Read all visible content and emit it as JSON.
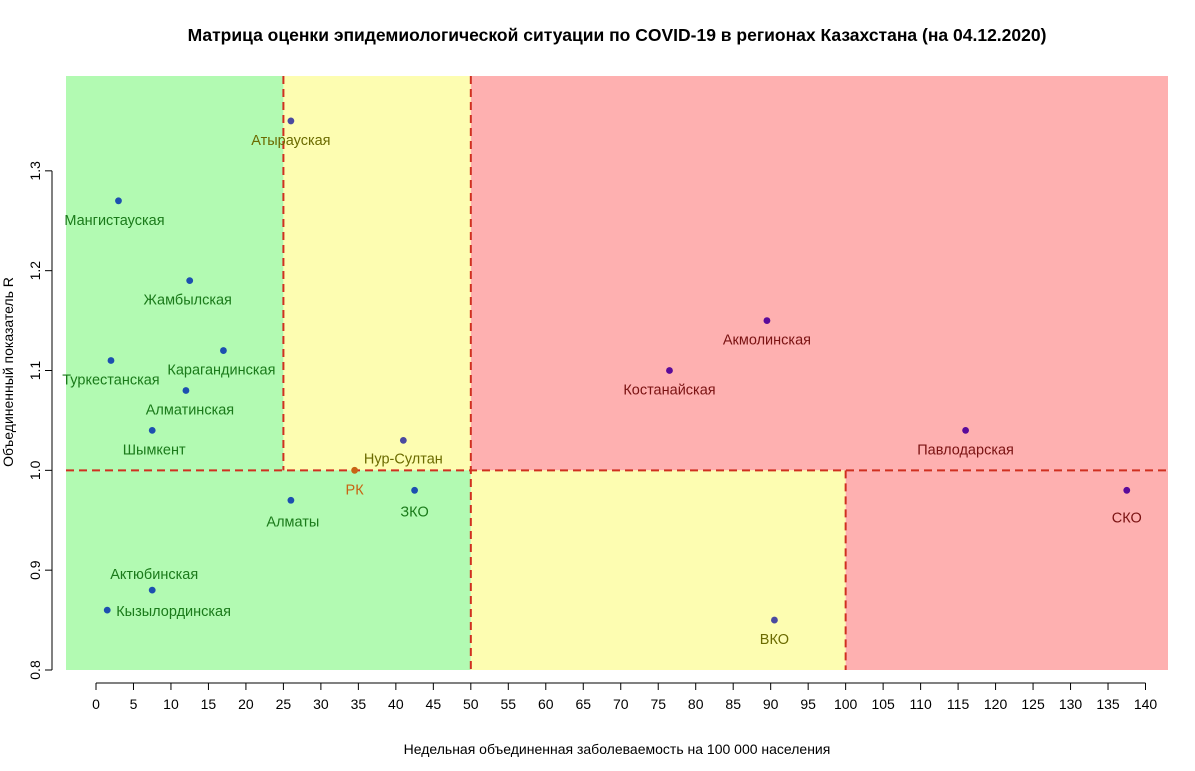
{
  "chart_data": {
    "type": "scatter",
    "title": "Матрица оценки эпидемиологической ситуации по COVID-19 в регионах Казахстана (на 04.12.2020)",
    "xlabel": "Недельная объединенная заболеваемость на 100 000 населения",
    "ylabel": "Объединенный показатель R",
    "xlim": [
      -4,
      143
    ],
    "ylim": [
      0.8,
      1.395
    ],
    "x_ticks": [
      0,
      5,
      10,
      15,
      20,
      25,
      30,
      35,
      40,
      45,
      50,
      55,
      60,
      65,
      70,
      75,
      80,
      85,
      90,
      95,
      100,
      105,
      110,
      115,
      120,
      125,
      130,
      135,
      140
    ],
    "y_ticks": [
      0.8,
      0.9,
      1.0,
      1.1,
      1.2,
      1.3
    ],
    "y_tick_labels": [
      "0.8",
      "0.9",
      "1.0",
      "1.1",
      "1.2",
      "1.3"
    ],
    "zones": [
      {
        "x": [
          -4,
          25
        ],
        "y": [
          1.0,
          1.395
        ],
        "color": "#b2fab2"
      },
      {
        "x": [
          25,
          50
        ],
        "y": [
          1.0,
          1.395
        ],
        "color": "#fdfdb1"
      },
      {
        "x": [
          50,
          143
        ],
        "y": [
          1.0,
          1.395
        ],
        "color": "#feb0b0"
      },
      {
        "x": [
          -4,
          50
        ],
        "y": [
          0.8,
          1.0
        ],
        "color": "#b2fab2"
      },
      {
        "x": [
          50,
          100
        ],
        "y": [
          0.8,
          1.0
        ],
        "color": "#fdfdb1"
      },
      {
        "x": [
          100,
          143
        ],
        "y": [
          0.8,
          1.0
        ],
        "color": "#feb0b0"
      }
    ],
    "threshold_lines": [
      {
        "orientation": "vertical",
        "x": 25,
        "y": [
          1.0,
          1.395
        ]
      },
      {
        "orientation": "vertical",
        "x": 50,
        "y": [
          0.8,
          1.395
        ]
      },
      {
        "orientation": "vertical",
        "x": 100,
        "y": [
          0.8,
          1.0
        ]
      },
      {
        "orientation": "horizontal",
        "y": 1.0,
        "x": [
          -4,
          143
        ]
      }
    ],
    "line_color": "#d03020",
    "points": [
      {
        "label": "Атырауская",
        "x": 26,
        "y": 1.35,
        "color": "#4a4aa0",
        "label_color": "#6b6b00"
      },
      {
        "label": "Мангистауская",
        "x": 3,
        "y": 1.27,
        "color": "#1c4fb0",
        "label_color": "#1a7a1a"
      },
      {
        "label": "Жамбылская",
        "x": 12.5,
        "y": 1.19,
        "color": "#1c4fb0",
        "label_color": "#1a7a1a"
      },
      {
        "label": "Карагандинская",
        "x": 17,
        "y": 1.12,
        "color": "#1c4fb0",
        "label_color": "#1a7a1a"
      },
      {
        "label": "Туркестанская",
        "x": 2,
        "y": 1.11,
        "color": "#1c4fb0",
        "label_color": "#1a7a1a"
      },
      {
        "label": "Алматинская",
        "x": 12,
        "y": 1.08,
        "color": "#1c4fb0",
        "label_color": "#1a7a1a"
      },
      {
        "label": "Шымкент",
        "x": 7.5,
        "y": 1.04,
        "color": "#1c4fb0",
        "label_color": "#1a7a1a"
      },
      {
        "label": "Нур-Султан",
        "x": 41,
        "y": 1.03,
        "color": "#4a4aa0",
        "label_color": "#6b6b00"
      },
      {
        "label": "РК",
        "x": 34.5,
        "y": 1.0,
        "color": "#c86414",
        "label_color": "#c86414"
      },
      {
        "label": "Алматы",
        "x": 26,
        "y": 0.97,
        "color": "#1c4fb0",
        "label_color": "#1a7a1a"
      },
      {
        "label": "ЗКО",
        "x": 42.5,
        "y": 0.98,
        "color": "#1c4fb0",
        "label_color": "#1a7a1a"
      },
      {
        "label": "Актюбинская",
        "x": 7.5,
        "y": 0.88,
        "color": "#1c4fb0",
        "label_color": "#1a7a1a"
      },
      {
        "label": "Кызылординская",
        "x": 1.5,
        "y": 0.86,
        "color": "#1c4fb0",
        "label_color": "#1a7a1a"
      },
      {
        "label": "Акмолинская",
        "x": 89.5,
        "y": 1.15,
        "color": "#5a0a9a",
        "label_color": "#7a1212"
      },
      {
        "label": "Костанайская",
        "x": 76.5,
        "y": 1.1,
        "color": "#5a0a9a",
        "label_color": "#7a1212"
      },
      {
        "label": "Павлодарская",
        "x": 116,
        "y": 1.04,
        "color": "#5a0a9a",
        "label_color": "#7a1212"
      },
      {
        "label": "СКО",
        "x": 137.5,
        "y": 0.98,
        "color": "#5a0a9a",
        "label_color": "#7a1212"
      },
      {
        "label": "ВКО",
        "x": 90.5,
        "y": 0.85,
        "color": "#4a4aa0",
        "label_color": "#6b6b00"
      }
    ]
  }
}
